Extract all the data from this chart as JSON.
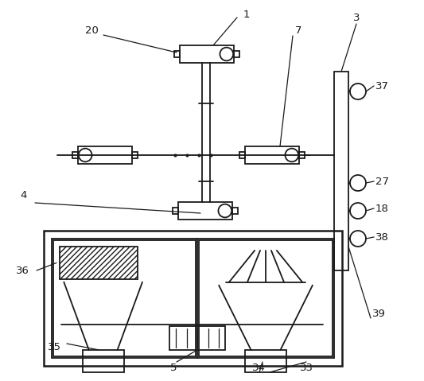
{
  "bg_color": "#ffffff",
  "line_color": "#1a1a1a",
  "fig_w": 5.33,
  "fig_h": 4.79,
  "dpi": 100
}
